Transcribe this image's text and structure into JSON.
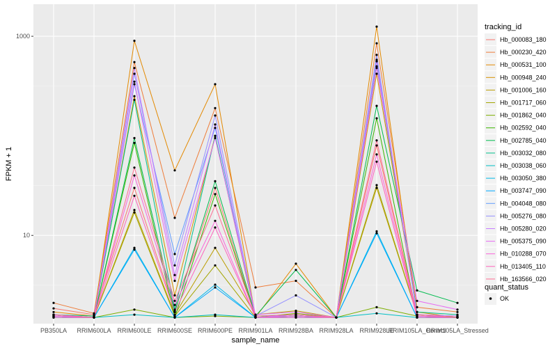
{
  "chart_data": {
    "type": "line",
    "xlabel": "sample_name",
    "ylabel": "FPKM + 1",
    "y_scale": "log10",
    "ylim": [
      1.3,
      2100
    ],
    "yticks": [
      10,
      1000
    ],
    "ytick_labels": [
      "10",
      "1000"
    ],
    "grid": true,
    "legend_placement": "right",
    "categories": [
      "PB350LA",
      "RRIM600LA",
      "RRIM600LE",
      "RRIM600SE",
      "RRIM600PE",
      "RRIM901LA",
      "RRIM928BA",
      "RRIM928LA",
      "RRIM928LE",
      "RRIM105LA_Control",
      "RRIM105LA_Stressed"
    ],
    "series": [
      {
        "name": "Hb_000083_180",
        "color": "#F8766D",
        "values": [
          1.85,
          1.6,
          30,
          1.75,
          30,
          1.5,
          1.5,
          1.5,
          80,
          1.6,
          1.5
        ]
      },
      {
        "name": "Hb_000230_420",
        "color": "#EE7C39",
        "values": [
          2.1,
          1.65,
          550,
          15,
          190,
          3,
          3.5,
          1.5,
          850,
          1.9,
          1.7
        ]
      },
      {
        "name": "Hb_000531_100",
        "color": "#E38900",
        "values": [
          1.7,
          1.55,
          900,
          45,
          330,
          1.5,
          5.2,
          1.5,
          1250,
          1.55,
          1.5
        ]
      },
      {
        "name": "Hb_000948_240",
        "color": "#D69100",
        "values": [
          1.6,
          1.5,
          250,
          2.5,
          100,
          1.5,
          1.6,
          1.5,
          420,
          1.7,
          1.5
        ]
      },
      {
        "name": "Hb_001006_160",
        "color": "#BB9D00",
        "values": [
          1.55,
          1.5,
          18,
          1.6,
          7.5,
          1.6,
          1.75,
          1.5,
          30,
          1.6,
          1.55
        ]
      },
      {
        "name": "Hb_001717_060",
        "color": "#A3A500",
        "values": [
          1.55,
          1.5,
          17,
          1.55,
          5,
          1.5,
          1.6,
          1.5,
          32,
          1.6,
          1.5
        ]
      },
      {
        "name": "Hb_001862_040",
        "color": "#7CAE00",
        "values": [
          1.55,
          1.5,
          1.8,
          1.5,
          1.55,
          1.5,
          1.65,
          1.5,
          1.9,
          1.55,
          1.5
        ]
      },
      {
        "name": "Hb_002592_040",
        "color": "#39B600",
        "values": [
          1.5,
          1.5,
          85,
          1.5,
          26,
          1.5,
          1.55,
          1.5,
          150,
          1.5,
          1.5
        ]
      },
      {
        "name": "Hb_002785_040",
        "color": "#00BB4E",
        "values": [
          1.6,
          1.5,
          95,
          1.7,
          35,
          1.55,
          4.5,
          1.5,
          200,
          2.8,
          2.1
        ]
      },
      {
        "name": "Hb_003032_080",
        "color": "#00C08B",
        "values": [
          1.6,
          1.55,
          230,
          1.8,
          100,
          1.55,
          1.6,
          1.5,
          500,
          1.7,
          1.6
        ]
      },
      {
        "name": "Hb_003038_060",
        "color": "#00BFC4",
        "values": [
          1.55,
          1.5,
          1.6,
          1.5,
          1.6,
          1.5,
          1.55,
          1.5,
          1.65,
          1.5,
          1.5
        ]
      },
      {
        "name": "Hb_003050_380",
        "color": "#00B8E7",
        "values": [
          1.5,
          1.5,
          7.5,
          1.5,
          3.2,
          1.5,
          1.5,
          1.5,
          11,
          1.5,
          1.5
        ]
      },
      {
        "name": "Hb_003747_090",
        "color": "#00A9FF",
        "values": [
          1.5,
          1.5,
          7.2,
          1.5,
          3,
          1.5,
          1.5,
          1.5,
          10.5,
          1.5,
          1.5
        ]
      },
      {
        "name": "Hb_004048_080",
        "color": "#619CFF",
        "values": [
          1.6,
          1.5,
          330,
          6.5,
          120,
          1.5,
          1.6,
          1.5,
          580,
          1.6,
          1.55
        ]
      },
      {
        "name": "Hb_005276_080",
        "color": "#9590FF",
        "values": [
          1.55,
          1.5,
          420,
          5,
          160,
          1.55,
          2.5,
          1.5,
          650,
          1.55,
          1.5
        ]
      },
      {
        "name": "Hb_005280_020",
        "color": "#C77CFF",
        "values": [
          1.55,
          1.5,
          480,
          4,
          130,
          1.5,
          1.6,
          1.5,
          560,
          1.6,
          1.55
        ]
      },
      {
        "name": "Hb_005375_090",
        "color": "#E76BF3",
        "values": [
          1.6,
          1.5,
          350,
          3.5,
          95,
          1.6,
          1.7,
          1.5,
          480,
          2.2,
          1.8
        ]
      },
      {
        "name": "Hb_010288_070",
        "color": "#FA62DB",
        "values": [
          1.55,
          1.5,
          40,
          2,
          14,
          1.5,
          1.55,
          1.5,
          65,
          1.55,
          1.5
        ]
      },
      {
        "name": "Hb_013405_110",
        "color": "#FF62BC",
        "values": [
          1.5,
          1.5,
          25,
          1.7,
          12,
          1.5,
          1.5,
          1.5,
          55,
          1.5,
          1.5
        ]
      },
      {
        "name": "Hb_163566_020",
        "color": "#FF6C91",
        "values": [
          1.6,
          1.5,
          48,
          2.2,
          20,
          1.55,
          1.6,
          1.5,
          90,
          1.6,
          1.5
        ]
      }
    ],
    "legend_title": "tracking_id",
    "legend2_title": "quant_status",
    "legend2_entries": [
      "OK"
    ]
  }
}
